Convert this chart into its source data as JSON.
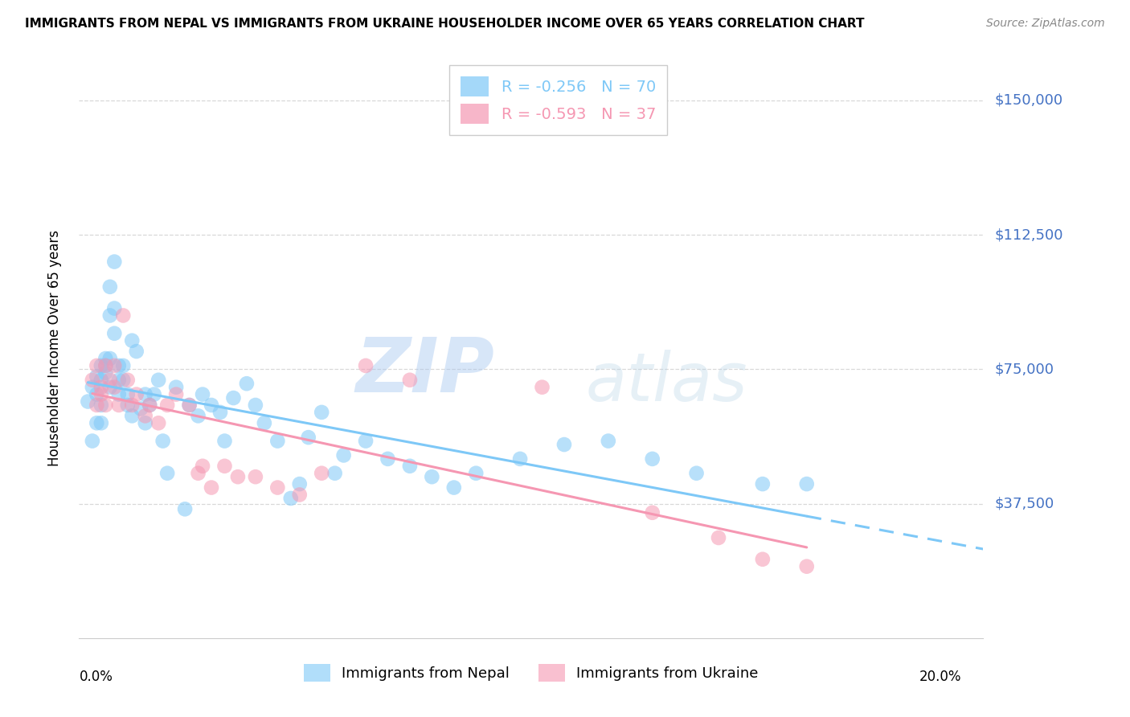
{
  "title": "IMMIGRANTS FROM NEPAL VS IMMIGRANTS FROM UKRAINE HOUSEHOLDER INCOME OVER 65 YEARS CORRELATION CHART",
  "source": "Source: ZipAtlas.com",
  "ylabel": "Householder Income Over 65 years",
  "ytick_labels": [
    "$37,500",
    "$75,000",
    "$112,500",
    "$150,000"
  ],
  "ytick_values": [
    37500,
    75000,
    112500,
    150000
  ],
  "ylim": [
    0,
    162000
  ],
  "xlim": [
    0.0,
    0.205
  ],
  "nepal_color": "#7ec8f7",
  "ukraine_color": "#f597b2",
  "nepal_R": -0.256,
  "nepal_N": 70,
  "ukraine_R": -0.593,
  "ukraine_N": 37,
  "legend_nepal_label": "R = -0.256   N = 70",
  "legend_ukraine_label": "R = -0.593   N = 37",
  "nepal_x": [
    0.002,
    0.003,
    0.003,
    0.004,
    0.004,
    0.004,
    0.005,
    0.005,
    0.005,
    0.005,
    0.006,
    0.006,
    0.006,
    0.007,
    0.007,
    0.007,
    0.007,
    0.008,
    0.008,
    0.008,
    0.009,
    0.009,
    0.009,
    0.01,
    0.01,
    0.011,
    0.011,
    0.012,
    0.012,
    0.013,
    0.014,
    0.015,
    0.015,
    0.016,
    0.017,
    0.018,
    0.019,
    0.02,
    0.022,
    0.024,
    0.025,
    0.027,
    0.028,
    0.03,
    0.032,
    0.033,
    0.035,
    0.038,
    0.04,
    0.042,
    0.045,
    0.048,
    0.05,
    0.052,
    0.055,
    0.058,
    0.06,
    0.065,
    0.07,
    0.075,
    0.08,
    0.085,
    0.09,
    0.1,
    0.11,
    0.12,
    0.13,
    0.14,
    0.155,
    0.165
  ],
  "nepal_y": [
    66000,
    55000,
    70000,
    68000,
    73000,
    60000,
    76000,
    72000,
    65000,
    60000,
    78000,
    74000,
    76000,
    98000,
    90000,
    78000,
    70000,
    105000,
    92000,
    85000,
    76000,
    72000,
    68000,
    76000,
    72000,
    68000,
    65000,
    62000,
    83000,
    80000,
    64000,
    68000,
    60000,
    65000,
    68000,
    72000,
    55000,
    46000,
    70000,
    36000,
    65000,
    62000,
    68000,
    65000,
    63000,
    55000,
    67000,
    71000,
    65000,
    60000,
    55000,
    39000,
    43000,
    56000,
    63000,
    46000,
    51000,
    55000,
    50000,
    48000,
    45000,
    42000,
    46000,
    50000,
    54000,
    55000,
    50000,
    46000,
    43000,
    43000
  ],
  "ukraine_x": [
    0.003,
    0.004,
    0.004,
    0.005,
    0.005,
    0.006,
    0.006,
    0.007,
    0.008,
    0.008,
    0.009,
    0.01,
    0.011,
    0.012,
    0.013,
    0.015,
    0.016,
    0.018,
    0.02,
    0.022,
    0.025,
    0.027,
    0.028,
    0.03,
    0.033,
    0.036,
    0.04,
    0.045,
    0.05,
    0.055,
    0.065,
    0.075,
    0.105,
    0.13,
    0.145,
    0.155,
    0.165
  ],
  "ukraine_y": [
    72000,
    65000,
    76000,
    68000,
    70000,
    76000,
    65000,
    72000,
    76000,
    70000,
    65000,
    90000,
    72000,
    65000,
    68000,
    62000,
    65000,
    60000,
    65000,
    68000,
    65000,
    46000,
    48000,
    42000,
    48000,
    45000,
    45000,
    42000,
    40000,
    46000,
    76000,
    72000,
    70000,
    35000,
    28000,
    22000,
    20000
  ],
  "watermark_zip": "ZIP",
  "watermark_atlas": "atlas",
  "background_color": "#ffffff",
  "grid_color": "#d8d8d8",
  "right_label_color": "#4472C4",
  "source_color": "#888888",
  "bottom_legend_nepal": "Immigrants from Nepal",
  "bottom_legend_ukraine": "Immigrants from Ukraine"
}
